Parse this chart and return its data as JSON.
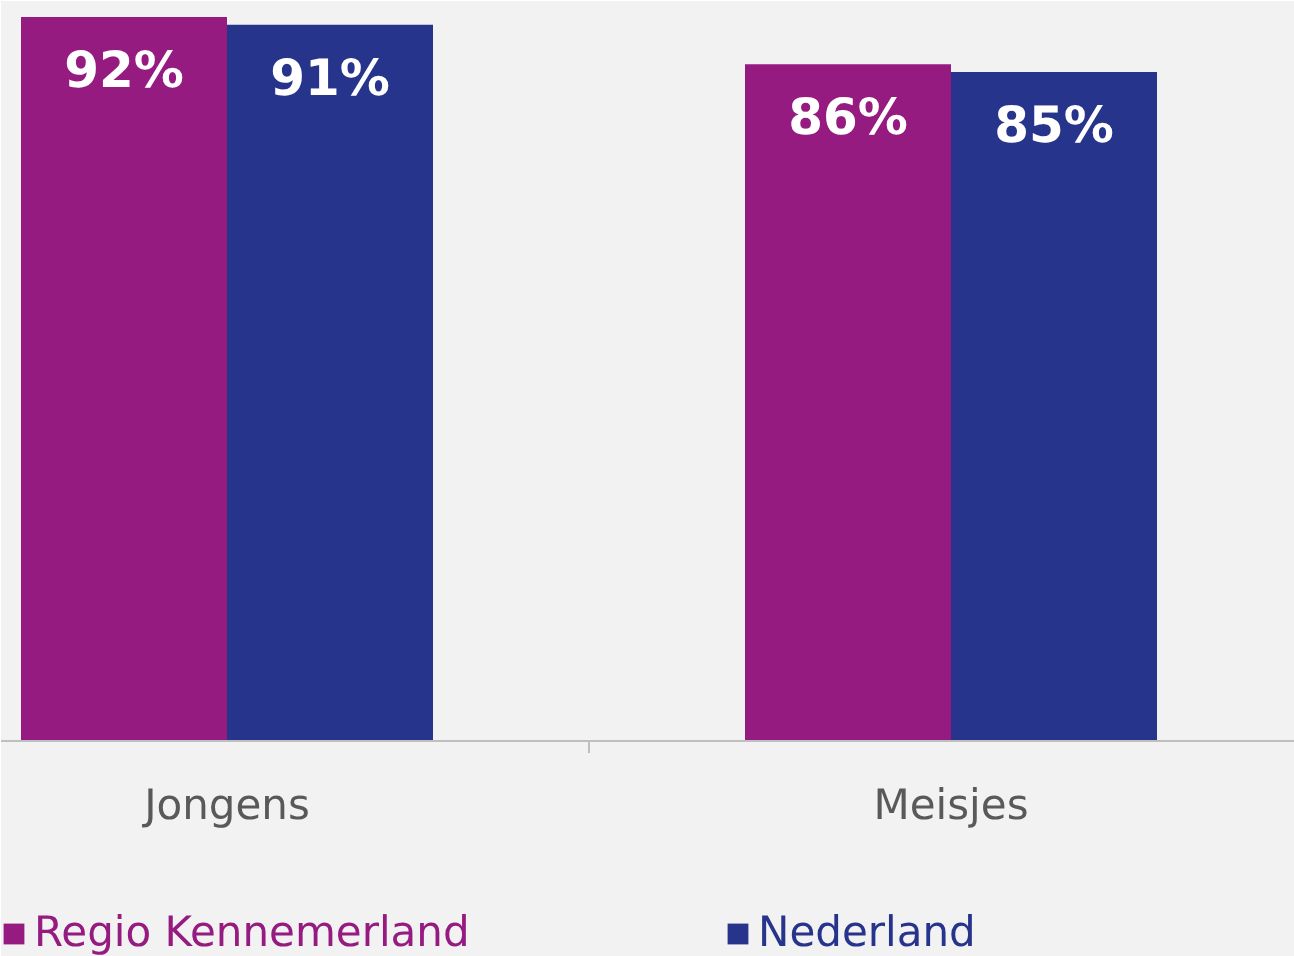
{
  "chart_data": {
    "type": "bar",
    "categories": [
      "Jongens",
      "Meisjes"
    ],
    "series": [
      {
        "name": "Regio Kennemerland",
        "color": "#951b81",
        "values": [
          92,
          86
        ],
        "value_labels": [
          "92%",
          "86%"
        ]
      },
      {
        "name": "Nederland",
        "color": "#27348b",
        "values": [
          91,
          85
        ],
        "value_labels": [
          "91%",
          "85%"
        ]
      }
    ],
    "legend": "bottom left",
    "grid": false
  }
}
